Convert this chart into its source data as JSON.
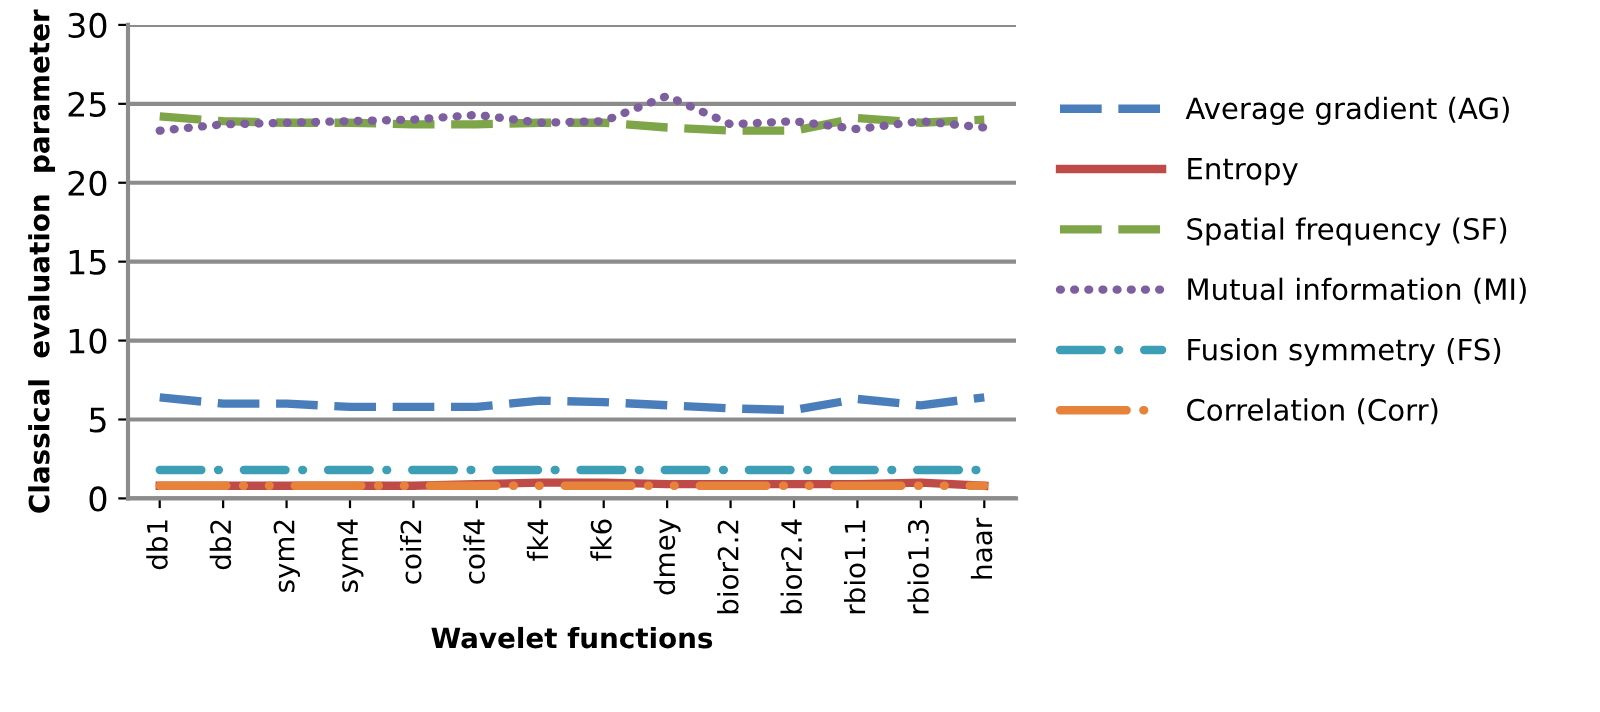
{
  "chart_data": {
    "type": "line",
    "xlabel": "Wavelet functions",
    "ylabel": "Classical  evaluation  parameter",
    "categories": [
      "db1",
      "db2",
      "sym2",
      "sym4",
      "coif2",
      "coif4",
      "fk4",
      "fk6",
      "dmey",
      "bior2.2",
      "bior2.4",
      "rbio1.1",
      "rbio1.3",
      "haar"
    ],
    "ylim": [
      0,
      30
    ],
    "yticks": [
      0,
      5,
      10,
      15,
      20,
      25,
      30
    ],
    "grid": "y",
    "legend": "right",
    "marker": "none",
    "series": [
      {
        "name": "Average gradient (AG)",
        "color": "#4a7ebb",
        "line_style": "dashed",
        "values": [
          6.4,
          6.0,
          6.0,
          5.8,
          5.8,
          5.8,
          6.2,
          6.1,
          5.9,
          5.7,
          5.6,
          6.3,
          5.9,
          6.4
        ]
      },
      {
        "name": "Entropy",
        "color": "#be4b48",
        "line_style": "solid",
        "values": [
          0.8,
          0.8,
          0.8,
          0.8,
          0.8,
          0.9,
          1.0,
          1.0,
          0.9,
          0.9,
          0.9,
          0.9,
          1.0,
          0.8
        ]
      },
      {
        "name": "Spatial frequency (SF)",
        "color": "#7ea548",
        "line_style": "dashed",
        "values": [
          24.2,
          23.9,
          23.8,
          23.8,
          23.7,
          23.7,
          23.8,
          23.8,
          23.5,
          23.3,
          23.3,
          24.1,
          23.8,
          24.0
        ]
      },
      {
        "name": "Mutual information (MI)",
        "color": "#7d5fa0",
        "line_style": "dotted",
        "values": [
          23.3,
          23.7,
          23.8,
          23.9,
          24.0,
          24.3,
          23.8,
          23.9,
          25.5,
          23.7,
          23.9,
          23.4,
          23.9,
          23.5
        ]
      },
      {
        "name": "Fusion symmetry (FS)",
        "color": "#3d9fb5",
        "line_style": "dashdot",
        "values": [
          1.8,
          1.8,
          1.8,
          1.8,
          1.8,
          1.8,
          1.8,
          1.8,
          1.8,
          1.8,
          1.8,
          1.8,
          1.8,
          1.8
        ]
      },
      {
        "name": "Correlation (Corr)",
        "color": "#e6823a",
        "line_style": "dashdotdot",
        "values": [
          0.8,
          0.8,
          0.8,
          0.8,
          0.8,
          0.8,
          0.8,
          0.8,
          0.8,
          0.8,
          0.8,
          0.8,
          0.8,
          0.8
        ]
      }
    ]
  }
}
